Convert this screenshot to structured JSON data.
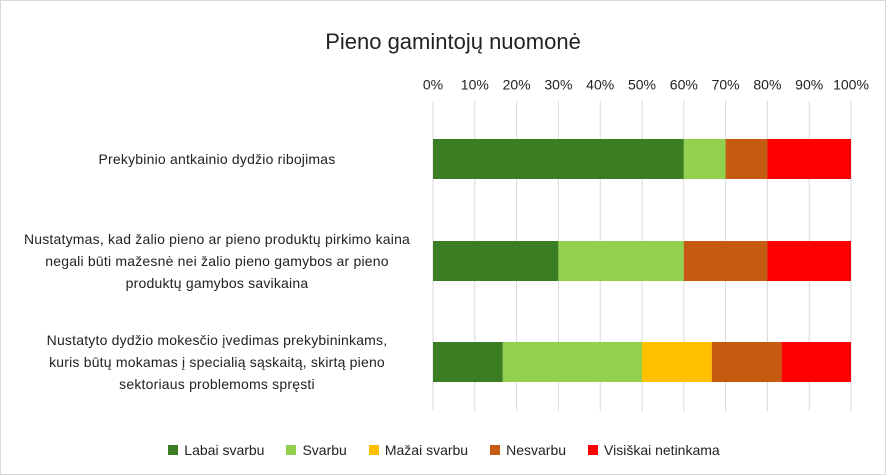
{
  "chart_data": {
    "type": "stacked_barh",
    "title": "Pieno gamintojų nuomonė",
    "categories": [
      "Prekybinio antkainio dydžio ribojimas",
      "Nustatymas, kad žalio pieno ar pieno produktų pirkimo kaina negali būti mažesnė nei žalio pieno gamybos ar pieno produktų gamybos savikaina",
      "Nustatyto dydžio mokesčio įvedimas prekybininkams, kuris būtų mokamas į specialią sąskaitą, skirtą pieno sektoriaus problemoms spręsti"
    ],
    "series": [
      {
        "name": "Labai svarbu",
        "color": "#3a7d22",
        "values": [
          60,
          30,
          16.7
        ]
      },
      {
        "name": "Svarbu",
        "color": "#92d050",
        "values": [
          10,
          30,
          33.3
        ]
      },
      {
        "name": "Mažai svarbu",
        "color": "#ffc000",
        "values": [
          0,
          0,
          16.7
        ]
      },
      {
        "name": "Nesvarbu",
        "color": "#c55a11",
        "values": [
          10,
          20,
          16.7
        ]
      },
      {
        "name": "Visiškai netinkama",
        "color": "#ff0000",
        "values": [
          20,
          20,
          16.6
        ]
      }
    ],
    "xlim": [
      0,
      100
    ],
    "xticks": [
      {
        "value": 0,
        "label": "0%"
      },
      {
        "value": 10,
        "label": "10%"
      },
      {
        "value": 20,
        "label": "20%"
      },
      {
        "value": 30,
        "label": "30%"
      },
      {
        "value": 40,
        "label": "40%"
      },
      {
        "value": 50,
        "label": "50%"
      },
      {
        "value": 60,
        "label": "60%"
      },
      {
        "value": 70,
        "label": "70%"
      },
      {
        "value": 80,
        "label": "80%"
      },
      {
        "value": 90,
        "label": "90%"
      },
      {
        "value": 100,
        "label": "100%"
      }
    ],
    "grid": true,
    "legend": "bottom"
  }
}
